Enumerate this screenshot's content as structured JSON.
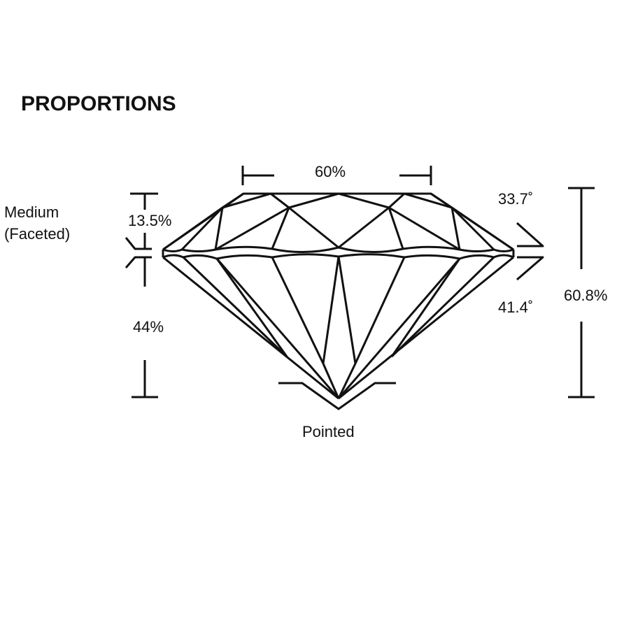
{
  "title": "PROPORTIONS",
  "labels": {
    "table": "60%",
    "crown_height": "13.5%",
    "girdle_line1": "Medium",
    "girdle_line2": "(Faceted)",
    "pavilion_depth": "44%",
    "crown_angle": "33.7˚",
    "pavilion_angle": "41.4˚",
    "total_depth": "60.8%",
    "culet": "Pointed"
  }
}
